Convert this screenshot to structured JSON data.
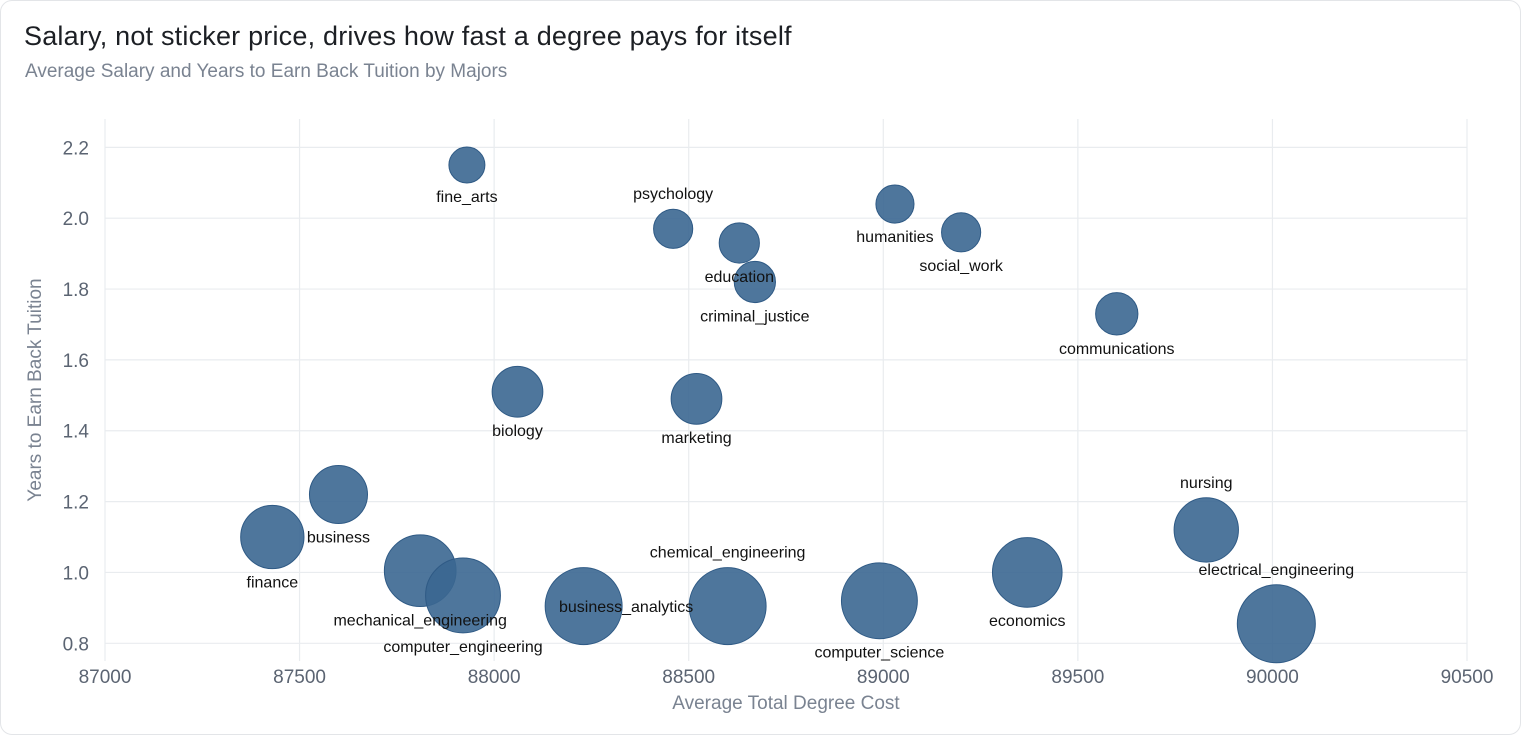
{
  "header": {
    "title": "Salary, not sticker price, drives how fast a degree pays for itself",
    "subtitle": "Average Salary and Years to Earn Back Tuition by Majors"
  },
  "colors": {
    "bubble": "#3b6791",
    "grid": "#e9ecef",
    "text": "#1c1f24",
    "muted": "#7a8391"
  },
  "chart_data": {
    "type": "scatter",
    "title": "Salary, not sticker price, drives how fast a degree pays for itself",
    "subtitle": "Average Salary and Years to Earn Back Tuition by Majors",
    "xlabel": "Average Total Degree Cost",
    "ylabel": "Years to Earn Back Tuition",
    "xlim": [
      87000,
      90500
    ],
    "ylim": [
      0.75,
      2.28
    ],
    "x_ticks": [
      "87000",
      "87500",
      "88000",
      "88500",
      "89000",
      "89500",
      "90000",
      "90500"
    ],
    "y_ticks": [
      "0.8",
      "1.0",
      "1.2",
      "1.4",
      "1.6",
      "1.8",
      "2.0",
      "2.2"
    ],
    "grid": true,
    "bubble_size_encodes": "average salary (not labeled)",
    "points": [
      {
        "label": "fine_arts",
        "x": 87930,
        "y": 2.15,
        "size": 0.6,
        "label_pos": "below"
      },
      {
        "label": "psychology",
        "x": 88460,
        "y": 1.97,
        "size": 0.63,
        "label_pos": "above"
      },
      {
        "label": "education",
        "x": 88630,
        "y": 1.93,
        "size": 0.64,
        "label_pos": "below"
      },
      {
        "label": "criminal_justice",
        "x": 88670,
        "y": 1.82,
        "size": 0.65,
        "label_pos": "below"
      },
      {
        "label": "humanities",
        "x": 89030,
        "y": 2.04,
        "size": 0.62,
        "label_pos": "below"
      },
      {
        "label": "social_work",
        "x": 89200,
        "y": 1.96,
        "size": 0.63,
        "label_pos": "below"
      },
      {
        "label": "communications",
        "x": 89600,
        "y": 1.73,
        "size": 0.66,
        "label_pos": "below"
      },
      {
        "label": "biology",
        "x": 88060,
        "y": 1.51,
        "size": 0.74,
        "label_pos": "below"
      },
      {
        "label": "marketing",
        "x": 88520,
        "y": 1.49,
        "size": 0.74,
        "label_pos": "below"
      },
      {
        "label": "business",
        "x": 87600,
        "y": 1.22,
        "size": 0.81,
        "label_pos": "below"
      },
      {
        "label": "finance",
        "x": 87430,
        "y": 1.1,
        "size": 0.86,
        "label_pos": "below"
      },
      {
        "label": "nursing",
        "x": 89830,
        "y": 1.12,
        "size": 0.87,
        "label_pos": "above"
      },
      {
        "label": "economics",
        "x": 89370,
        "y": 1.0,
        "size": 0.92,
        "label_pos": "below"
      },
      {
        "label": "mechanical_engineering",
        "x": 87810,
        "y": 1.005,
        "size": 0.94,
        "label_pos": "below"
      },
      {
        "label": "computer_engineering",
        "x": 87920,
        "y": 0.935,
        "size": 0.97,
        "label_pos": "below"
      },
      {
        "label": "business_analytics",
        "x": 88230,
        "y": 0.905,
        "size": 0.99,
        "label_pos": "right"
      },
      {
        "label": "chemical_engineering",
        "x": 88600,
        "y": 0.905,
        "size": 0.99,
        "label_pos": "above"
      },
      {
        "label": "computer_science",
        "x": 88990,
        "y": 0.92,
        "size": 0.98,
        "label_pos": "below"
      },
      {
        "label": "electrical_engineering",
        "x": 90010,
        "y": 0.855,
        "size": 1.0,
        "label_pos": "above"
      }
    ]
  }
}
